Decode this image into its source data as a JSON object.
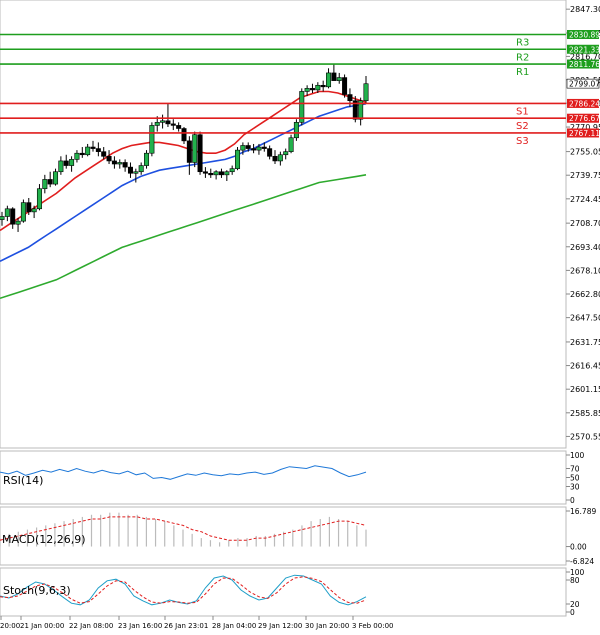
{
  "chart_data": {
    "type": "candlestick",
    "title": "",
    "price_axis": {
      "ylim": [
        2565.0,
        2850.0
      ],
      "ticks": [
        "2847.30",
        "2831.85",
        "2816.70",
        "2801.55",
        "2786.40",
        "2770.95",
        "2755.05",
        "2739.75",
        "2724.45",
        "2708.70",
        "2693.40",
        "2678.10",
        "2662.80",
        "2647.50",
        "2631.75",
        "2616.45",
        "2601.15",
        "2585.85",
        "2570.55"
      ]
    },
    "time_axis": {
      "labels": [
        "20:00",
        "21 Jan 00:00",
        "22 Jan 08:00",
        "23 Jan 16:00",
        "26 Jan 23:01",
        "28 Jan 04:00",
        "29 Jan 12:00",
        "30 Jan 20:00",
        "3 Feb 00:00"
      ]
    },
    "levels": [
      {
        "name": "R3",
        "value": 2830.89,
        "label": "2830.89",
        "color": "#1e9e1e"
      },
      {
        "name": "R2",
        "value": 2821.33,
        "label": "2821.33",
        "color": "#1e9e1e"
      },
      {
        "name": "R1",
        "value": 2811.76,
        "label": "2811.76",
        "color": "#1e9e1e"
      },
      {
        "name": "S1",
        "value": 2786.24,
        "label": "2786.24",
        "color": "#e01e1e"
      },
      {
        "name": "S2",
        "value": 2776.67,
        "label": "2776.67",
        "color": "#e01e1e"
      },
      {
        "name": "S3",
        "value": 2767.11,
        "label": "2767.11",
        "color": "#e01e1e"
      }
    ],
    "current_price": {
      "value": 2799.07,
      "label": "2799.07"
    },
    "candles": [
      [
        2711,
        2716,
        2707,
        2713
      ],
      [
        2713,
        2720,
        2710,
        2718
      ],
      [
        2718,
        2719,
        2705,
        2708
      ],
      [
        2708,
        2712,
        2703,
        2710
      ],
      [
        2710,
        2724,
        2709,
        2722
      ],
      [
        2722,
        2725,
        2714,
        2716
      ],
      [
        2716,
        2720,
        2712,
        2718
      ],
      [
        2718,
        2734,
        2717,
        2731
      ],
      [
        2731,
        2740,
        2728,
        2737
      ],
      [
        2737,
        2742,
        2732,
        2734
      ],
      [
        2734,
        2744,
        2733,
        2742
      ],
      [
        2742,
        2752,
        2740,
        2749
      ],
      [
        2749,
        2753,
        2744,
        2746
      ],
      [
        2746,
        2752,
        2742,
        2750
      ],
      [
        2750,
        2756,
        2748,
        2754
      ],
      [
        2754,
        2758,
        2751,
        2753
      ],
      [
        2753,
        2760,
        2752,
        2758
      ],
      [
        2758,
        2762,
        2755,
        2757
      ],
      [
        2757,
        2761,
        2752,
        2755
      ],
      [
        2755,
        2758,
        2750,
        2752
      ],
      [
        2752,
        2756,
        2747,
        2749
      ],
      [
        2749,
        2752,
        2744,
        2747
      ],
      [
        2747,
        2750,
        2744,
        2748
      ],
      [
        2748,
        2750,
        2742,
        2745
      ],
      [
        2745,
        2748,
        2738,
        2741
      ],
      [
        2741,
        2744,
        2735,
        2742
      ],
      [
        2742,
        2748,
        2740,
        2746
      ],
      [
        2746,
        2756,
        2744,
        2754
      ],
      [
        2754,
        2774,
        2752,
        2772
      ],
      [
        2772,
        2778,
        2768,
        2774
      ],
      [
        2774,
        2779,
        2770,
        2775
      ],
      [
        2775,
        2786,
        2771,
        2773
      ],
      [
        2773,
        2776,
        2769,
        2772
      ],
      [
        2772,
        2774,
        2768,
        2770
      ],
      [
        2770,
        2771,
        2760,
        2762
      ],
      [
        2762,
        2765,
        2740,
        2748
      ],
      [
        2748,
        2768,
        2745,
        2766
      ],
      [
        2766,
        2768,
        2740,
        2742
      ],
      [
        2742,
        2745,
        2738,
        2741
      ],
      [
        2741,
        2744,
        2738,
        2740
      ],
      [
        2740,
        2743,
        2737,
        2742
      ],
      [
        2742,
        2744,
        2738,
        2740
      ],
      [
        2740,
        2743,
        2736,
        2742
      ],
      [
        2742,
        2746,
        2740,
        2744
      ],
      [
        2744,
        2758,
        2743,
        2756
      ],
      [
        2756,
        2761,
        2753,
        2759
      ],
      [
        2759,
        2761,
        2755,
        2757
      ],
      [
        2757,
        2760,
        2754,
        2756
      ],
      [
        2756,
        2760,
        2753,
        2758
      ],
      [
        2758,
        2761,
        2755,
        2757
      ],
      [
        2757,
        2759,
        2750,
        2752
      ],
      [
        2752,
        2756,
        2747,
        2749
      ],
      [
        2749,
        2755,
        2746,
        2753
      ],
      [
        2753,
        2757,
        2750,
        2755
      ],
      [
        2755,
        2766,
        2754,
        2764
      ],
      [
        2764,
        2776,
        2762,
        2774
      ],
      [
        2774,
        2796,
        2772,
        2794
      ],
      [
        2794,
        2798,
        2791,
        2796
      ],
      [
        2796,
        2799,
        2793,
        2795
      ],
      [
        2795,
        2800,
        2793,
        2798
      ],
      [
        2798,
        2801,
        2794,
        2797
      ],
      [
        2797,
        2809,
        2796,
        2806
      ],
      [
        2806,
        2812,
        2802,
        2801
      ],
      [
        2801,
        2806,
        2799,
        2803
      ],
      [
        2803,
        2805,
        2790,
        2792
      ],
      [
        2792,
        2796,
        2784,
        2788
      ],
      [
        2788,
        2791,
        2774,
        2776
      ],
      [
        2776,
        2790,
        2772,
        2788
      ],
      [
        2788,
        2804,
        2786,
        2799
      ]
    ],
    "moving_averages": [
      {
        "color": "#e01e1e",
        "values": [
          2704,
          2708,
          2712,
          2716,
          2720,
          2724,
          2728,
          2733,
          2738,
          2742,
          2746,
          2750,
          2754,
          2757,
          2759,
          2760,
          2761,
          2761,
          2760,
          2759,
          2757,
          2755,
          2754,
          2754,
          2756,
          2760,
          2766,
          2770,
          2774,
          2778,
          2782,
          2786,
          2790,
          2792,
          2794,
          2794,
          2793,
          2791,
          2789,
          2787
        ]
      },
      {
        "color": "#1e50e0",
        "values": [
          2684,
          2687,
          2690,
          2693,
          2697,
          2701,
          2705,
          2709,
          2713,
          2717,
          2721,
          2725,
          2729,
          2733,
          2736,
          2739,
          2741,
          2743,
          2744,
          2745,
          2746,
          2747,
          2748,
          2749,
          2750,
          2752,
          2755,
          2757,
          2760,
          2763,
          2766,
          2769,
          2772,
          2775,
          2778,
          2780,
          2782,
          2784,
          2785,
          2786
        ]
      },
      {
        "color": "#2eaa2e",
        "values": [
          2660,
          2662,
          2664,
          2666,
          2668,
          2670,
          2672,
          2675,
          2678,
          2681,
          2684,
          2687,
          2690,
          2693,
          2695,
          2697,
          2699,
          2701,
          2703,
          2705,
          2707,
          2709,
          2711,
          2713,
          2715,
          2717,
          2719,
          2721,
          2723,
          2725,
          2727,
          2729,
          2731,
          2733,
          2735,
          2736,
          2737,
          2738,
          2739,
          2740
        ]
      }
    ],
    "rsi": {
      "label": "RSI(14)",
      "ticks": [
        "100",
        "70",
        "50",
        "30",
        "0"
      ],
      "values": [
        62,
        58,
        64,
        55,
        60,
        66,
        62,
        68,
        63,
        70,
        64,
        60,
        66,
        61,
        58,
        64,
        56,
        60,
        48,
        50,
        46,
        52,
        58,
        55,
        60,
        56,
        54,
        58,
        56,
        60,
        62,
        57,
        60,
        68,
        74,
        72,
        70,
        76,
        73,
        70,
        60,
        52,
        56,
        62
      ]
    },
    "macd": {
      "label": "MACD(12,26,9)",
      "ticks": [
        "16.789",
        "0.00",
        "-6.824"
      ],
      "histogram": [
        4,
        6,
        7,
        8,
        9,
        10,
        11,
        12,
        13,
        14,
        15,
        15,
        16,
        16,
        15,
        15,
        14,
        13,
        12,
        10,
        8,
        6,
        4,
        3,
        2,
        3,
        4,
        4,
        5,
        5,
        6,
        7,
        8,
        10,
        12,
        13,
        14,
        13,
        12,
        10,
        8
      ],
      "signal": [
        3,
        4,
        5,
        6,
        7,
        8,
        9,
        10,
        11,
        12,
        13,
        13,
        14,
        14,
        14,
        14,
        13,
        13,
        12,
        11,
        10,
        8,
        7,
        5,
        4,
        3,
        3,
        3,
        4,
        4,
        5,
        6,
        7,
        8,
        9,
        10,
        11,
        12,
        12,
        11,
        10
      ]
    },
    "stoch": {
      "label": "Stoch(9,6,3)",
      "ticks": [
        "100",
        "80",
        "20",
        "0"
      ],
      "k": [
        40,
        35,
        45,
        62,
        75,
        70,
        55,
        38,
        22,
        18,
        30,
        60,
        78,
        82,
        70,
        40,
        28,
        18,
        22,
        30,
        24,
        20,
        28,
        60,
        85,
        90,
        80,
        55,
        40,
        30,
        35,
        60,
        85,
        92,
        90,
        80,
        70,
        40,
        24,
        18,
        26,
        38
      ],
      "d": [
        38,
        36,
        40,
        52,
        65,
        70,
        62,
        48,
        32,
        22,
        26,
        45,
        65,
        78,
        75,
        55,
        38,
        25,
        22,
        26,
        25,
        22,
        24,
        45,
        70,
        85,
        84,
        68,
        50,
        38,
        34,
        48,
        70,
        85,
        88,
        84,
        76,
        56,
        36,
        24,
        22,
        30
      ]
    }
  }
}
